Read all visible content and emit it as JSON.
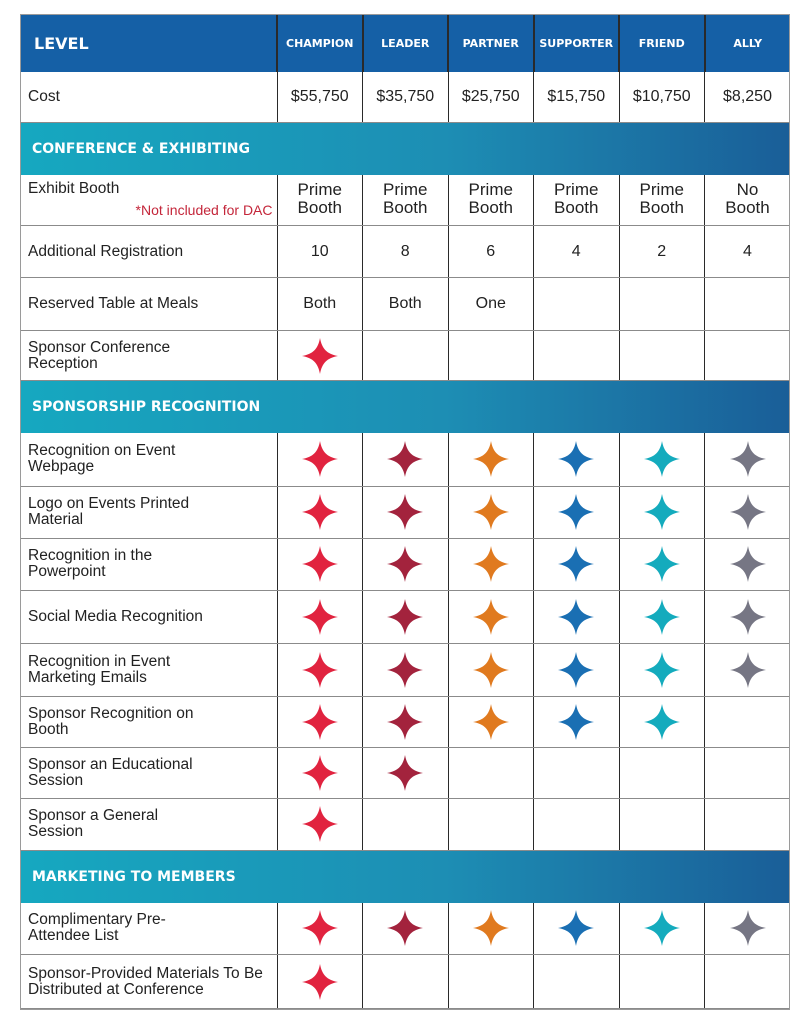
{
  "header": {
    "level_label": "LEVEL",
    "tiers": [
      "CHAMPION",
      "LEADER",
      "PARTNER",
      "SUPPORTER",
      "FRIEND",
      "ALLY"
    ]
  },
  "cost": {
    "label": "Cost",
    "values": [
      "$55,750",
      "$35,750",
      "$25,750",
      "$15,750",
      "$10,750",
      "$8,250"
    ]
  },
  "colors": {
    "header_blue": "#1560a6",
    "section_gradient": [
      "#16a8c0",
      "#1a5e98"
    ],
    "note_red": "#c4263a",
    "tier_star_colors": [
      "#e1233f",
      "#a3233d",
      "#e07a1f",
      "#1a6fb3",
      "#14abbd",
      "#767684"
    ]
  },
  "icons": {
    "benefit_marker": "four-point-star-icon"
  },
  "sections": [
    {
      "title": "CONFERENCE & EXHIBITING",
      "rows": [
        {
          "label": "Exhibit Booth",
          "note": "*Not included for DAC",
          "cells": [
            "Prime Booth",
            "Prime Booth",
            "Prime Booth",
            "Prime Booth",
            "Prime Booth",
            "No Booth"
          ]
        },
        {
          "label": "Additional Registration",
          "cells": [
            "10",
            "8",
            "6",
            "4",
            "2",
            "4"
          ]
        },
        {
          "label": "Reserved Table at Meals",
          "cells": [
            "Both",
            "Both",
            "One",
            "",
            "",
            ""
          ]
        },
        {
          "label": "Sponsor Conference Reception",
          "cells": [
            true,
            false,
            false,
            false,
            false,
            false
          ]
        }
      ]
    },
    {
      "title": "SPONSORSHIP RECOGNITION",
      "rows": [
        {
          "label": "Recognition on Event Webpage",
          "cells": [
            true,
            true,
            true,
            true,
            true,
            true
          ]
        },
        {
          "label": "Logo on Events Printed Material",
          "cells": [
            true,
            true,
            true,
            true,
            true,
            true
          ]
        },
        {
          "label": "Recognition in the Powerpoint",
          "cells": [
            true,
            true,
            true,
            true,
            true,
            true
          ]
        },
        {
          "label": "Social Media Recognition",
          "cells": [
            true,
            true,
            true,
            true,
            true,
            true
          ]
        },
        {
          "label": "Recognition in Event Marketing Emails",
          "cells": [
            true,
            true,
            true,
            true,
            true,
            true
          ]
        },
        {
          "label": "Sponsor Recognition on Booth",
          "cells": [
            true,
            true,
            true,
            true,
            true,
            false
          ]
        },
        {
          "label": "Sponsor an Educational Session",
          "cells": [
            true,
            true,
            false,
            false,
            false,
            false
          ]
        },
        {
          "label": "Sponsor a General Session",
          "cells": [
            true,
            false,
            false,
            false,
            false,
            false
          ]
        }
      ]
    },
    {
      "title": "MARKETING TO MEMBERS",
      "rows": [
        {
          "label": "Complimentary Pre-Attendee List",
          "cells": [
            true,
            true,
            true,
            true,
            true,
            true
          ]
        },
        {
          "label": "Sponsor-Provided Materials To Be Distributed at Conference",
          "cells": [
            true,
            false,
            false,
            false,
            false,
            false
          ]
        }
      ]
    }
  ]
}
